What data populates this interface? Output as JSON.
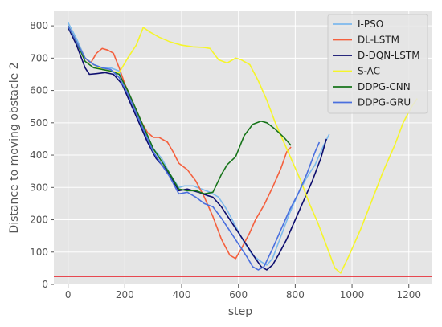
{
  "chart_data": {
    "type": "line",
    "xlabel": "step",
    "ylabel": "Distance to moving obstacle 2",
    "xlim": [
      -50,
      1280
    ],
    "ylim": [
      0,
      845
    ],
    "xticks": [
      0,
      200,
      400,
      600,
      800,
      1000,
      1200
    ],
    "yticks": [
      0,
      100,
      200,
      300,
      400,
      500,
      600,
      700,
      800
    ],
    "grid": true,
    "legend_position": "top-right",
    "threshold_line": {
      "y": 25,
      "color": "#e8141e"
    },
    "series": [
      {
        "name": "I-PSO",
        "color": "#7cb9ed",
        "points": [
          [
            0,
            810
          ],
          [
            30,
            760
          ],
          [
            60,
            700
          ],
          [
            90,
            680
          ],
          [
            120,
            670
          ],
          [
            150,
            670
          ],
          [
            180,
            660
          ],
          [
            210,
            600
          ],
          [
            240,
            540
          ],
          [
            270,
            480
          ],
          [
            300,
            420
          ],
          [
            330,
            390
          ],
          [
            360,
            340
          ],
          [
            390,
            300
          ],
          [
            410,
            305
          ],
          [
            440,
            305
          ],
          [
            470,
            295
          ],
          [
            500,
            285
          ],
          [
            530,
            270
          ],
          [
            560,
            230
          ],
          [
            590,
            180
          ],
          [
            620,
            130
          ],
          [
            650,
            90
          ],
          [
            680,
            70
          ],
          [
            700,
            60
          ],
          [
            720,
            80
          ],
          [
            750,
            150
          ],
          [
            780,
            220
          ],
          [
            810,
            280
          ],
          [
            840,
            330
          ],
          [
            870,
            370
          ],
          [
            900,
            430
          ],
          [
            920,
            465
          ]
        ]
      },
      {
        "name": "DL-LSTM",
        "color": "#f4603e",
        "points": [
          [
            0,
            800
          ],
          [
            30,
            750
          ],
          [
            60,
            700
          ],
          [
            80,
            685
          ],
          [
            100,
            715
          ],
          [
            120,
            730
          ],
          [
            140,
            725
          ],
          [
            160,
            715
          ],
          [
            180,
            670
          ],
          [
            200,
            620
          ],
          [
            230,
            560
          ],
          [
            260,
            500
          ],
          [
            280,
            470
          ],
          [
            300,
            455
          ],
          [
            320,
            455
          ],
          [
            350,
            440
          ],
          [
            370,
            410
          ],
          [
            390,
            375
          ],
          [
            420,
            355
          ],
          [
            450,
            320
          ],
          [
            480,
            270
          ],
          [
            510,
            210
          ],
          [
            540,
            140
          ],
          [
            570,
            90
          ],
          [
            590,
            80
          ],
          [
            610,
            110
          ],
          [
            640,
            160
          ],
          [
            660,
            200
          ],
          [
            690,
            245
          ],
          [
            720,
            300
          ],
          [
            750,
            360
          ],
          [
            770,
            410
          ],
          [
            785,
            425
          ]
        ]
      },
      {
        "name": "D-DQN-LSTM",
        "color": "#0d0d6e",
        "points": [
          [
            0,
            795
          ],
          [
            30,
            740
          ],
          [
            60,
            670
          ],
          [
            75,
            650
          ],
          [
            100,
            652
          ],
          [
            130,
            655
          ],
          [
            160,
            650
          ],
          [
            190,
            620
          ],
          [
            220,
            560
          ],
          [
            250,
            500
          ],
          [
            280,
            440
          ],
          [
            310,
            390
          ],
          [
            340,
            360
          ],
          [
            370,
            320
          ],
          [
            390,
            290
          ],
          [
            420,
            295
          ],
          [
            460,
            285
          ],
          [
            490,
            275
          ],
          [
            510,
            270
          ],
          [
            540,
            240
          ],
          [
            570,
            200
          ],
          [
            600,
            160
          ],
          [
            630,
            120
          ],
          [
            660,
            80
          ],
          [
            680,
            55
          ],
          [
            700,
            45
          ],
          [
            720,
            60
          ],
          [
            740,
            90
          ],
          [
            770,
            140
          ],
          [
            800,
            200
          ],
          [
            830,
            260
          ],
          [
            860,
            320
          ],
          [
            890,
            390
          ],
          [
            910,
            450
          ]
        ]
      },
      {
        "name": "S-AC",
        "color": "#f5f52a",
        "points": [
          [
            0,
            800
          ],
          [
            30,
            750
          ],
          [
            60,
            700
          ],
          [
            90,
            680
          ],
          [
            120,
            665
          ],
          [
            150,
            660
          ],
          [
            180,
            655
          ],
          [
            210,
            700
          ],
          [
            240,
            740
          ],
          [
            265,
            795
          ],
          [
            290,
            780
          ],
          [
            320,
            765
          ],
          [
            360,
            750
          ],
          [
            400,
            740
          ],
          [
            440,
            735
          ],
          [
            480,
            733
          ],
          [
            500,
            730
          ],
          [
            530,
            695
          ],
          [
            560,
            685
          ],
          [
            590,
            700
          ],
          [
            610,
            695
          ],
          [
            640,
            680
          ],
          [
            670,
            630
          ],
          [
            700,
            570
          ],
          [
            730,
            500
          ],
          [
            760,
            440
          ],
          [
            790,
            380
          ],
          [
            820,
            320
          ],
          [
            850,
            250
          ],
          [
            880,
            190
          ],
          [
            910,
            120
          ],
          [
            940,
            50
          ],
          [
            960,
            35
          ],
          [
            990,
            90
          ],
          [
            1030,
            170
          ],
          [
            1070,
            260
          ],
          [
            1110,
            350
          ],
          [
            1150,
            430
          ],
          [
            1180,
            500
          ],
          [
            1210,
            550
          ],
          [
            1230,
            575
          ]
        ]
      },
      {
        "name": "DDPG-CNN",
        "color": "#17741a",
        "points": [
          [
            0,
            800
          ],
          [
            30,
            750
          ],
          [
            60,
            690
          ],
          [
            90,
            670
          ],
          [
            120,
            665
          ],
          [
            150,
            660
          ],
          [
            180,
            650
          ],
          [
            210,
            600
          ],
          [
            240,
            540
          ],
          [
            270,
            480
          ],
          [
            300,
            420
          ],
          [
            330,
            380
          ],
          [
            360,
            340
          ],
          [
            390,
            295
          ],
          [
            420,
            290
          ],
          [
            450,
            290
          ],
          [
            480,
            280
          ],
          [
            510,
            285
          ],
          [
            540,
            340
          ],
          [
            560,
            370
          ],
          [
            590,
            395
          ],
          [
            620,
            460
          ],
          [
            650,
            495
          ],
          [
            680,
            505
          ],
          [
            700,
            500
          ],
          [
            730,
            480
          ],
          [
            760,
            455
          ],
          [
            785,
            430
          ]
        ]
      },
      {
        "name": "DDPG-GRU",
        "color": "#4a6fde",
        "points": [
          [
            0,
            800
          ],
          [
            30,
            750
          ],
          [
            60,
            700
          ],
          [
            90,
            680
          ],
          [
            120,
            670
          ],
          [
            150,
            665
          ],
          [
            180,
            640
          ],
          [
            210,
            590
          ],
          [
            240,
            530
          ],
          [
            270,
            470
          ],
          [
            300,
            410
          ],
          [
            330,
            370
          ],
          [
            360,
            330
          ],
          [
            390,
            280
          ],
          [
            420,
            285
          ],
          [
            450,
            270
          ],
          [
            480,
            250
          ],
          [
            510,
            240
          ],
          [
            540,
            205
          ],
          [
            570,
            165
          ],
          [
            600,
            125
          ],
          [
            630,
            85
          ],
          [
            650,
            55
          ],
          [
            670,
            45
          ],
          [
            690,
            55
          ],
          [
            720,
            110
          ],
          [
            750,
            170
          ],
          [
            780,
            230
          ],
          [
            810,
            280
          ],
          [
            840,
            340
          ],
          [
            870,
            410
          ],
          [
            885,
            440
          ]
        ]
      }
    ]
  }
}
